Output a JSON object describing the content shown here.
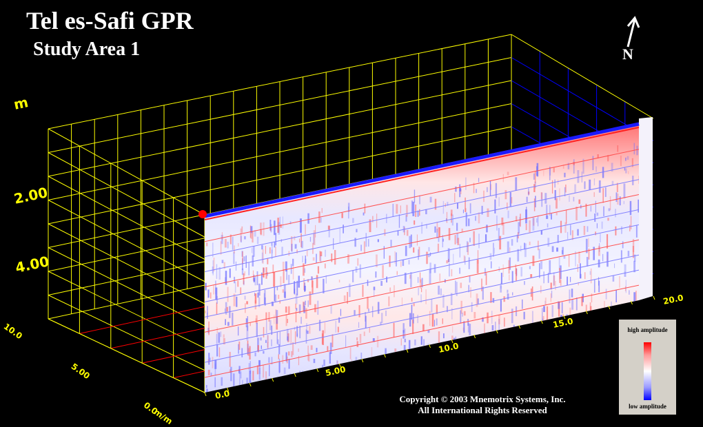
{
  "title": "Tel es-Safi GPR",
  "subtitle": "Study Area 1",
  "north_label": "N",
  "copyright_line1": "Copyright © 2003 Mnemotrix Systems, Inc.",
  "copyright_line2": "All International Rights Reserved",
  "legend": {
    "high_label": "high amplitude",
    "low_label": "low amplitude",
    "colors": {
      "high": "#ff0000",
      "mid": "#ffffff",
      "low": "#0000ff"
    }
  },
  "axes": {
    "depth": {
      "unit": "m",
      "tick_labels": [
        "2.00",
        "4.00"
      ]
    },
    "along_profile": {
      "tick_labels": [
        "0.0",
        "5.00",
        "10.0",
        "15.0",
        "20.0"
      ]
    },
    "cross_profile": {
      "unit": "m/m",
      "tick_labels": [
        "0.0",
        "5.00",
        "10.0"
      ]
    }
  },
  "colors": {
    "background": "#000000",
    "grid": "#ffff00",
    "cross_grid": "#ff0000",
    "back_grid": "#0000ff",
    "surface_marker": "#ff0000"
  }
}
